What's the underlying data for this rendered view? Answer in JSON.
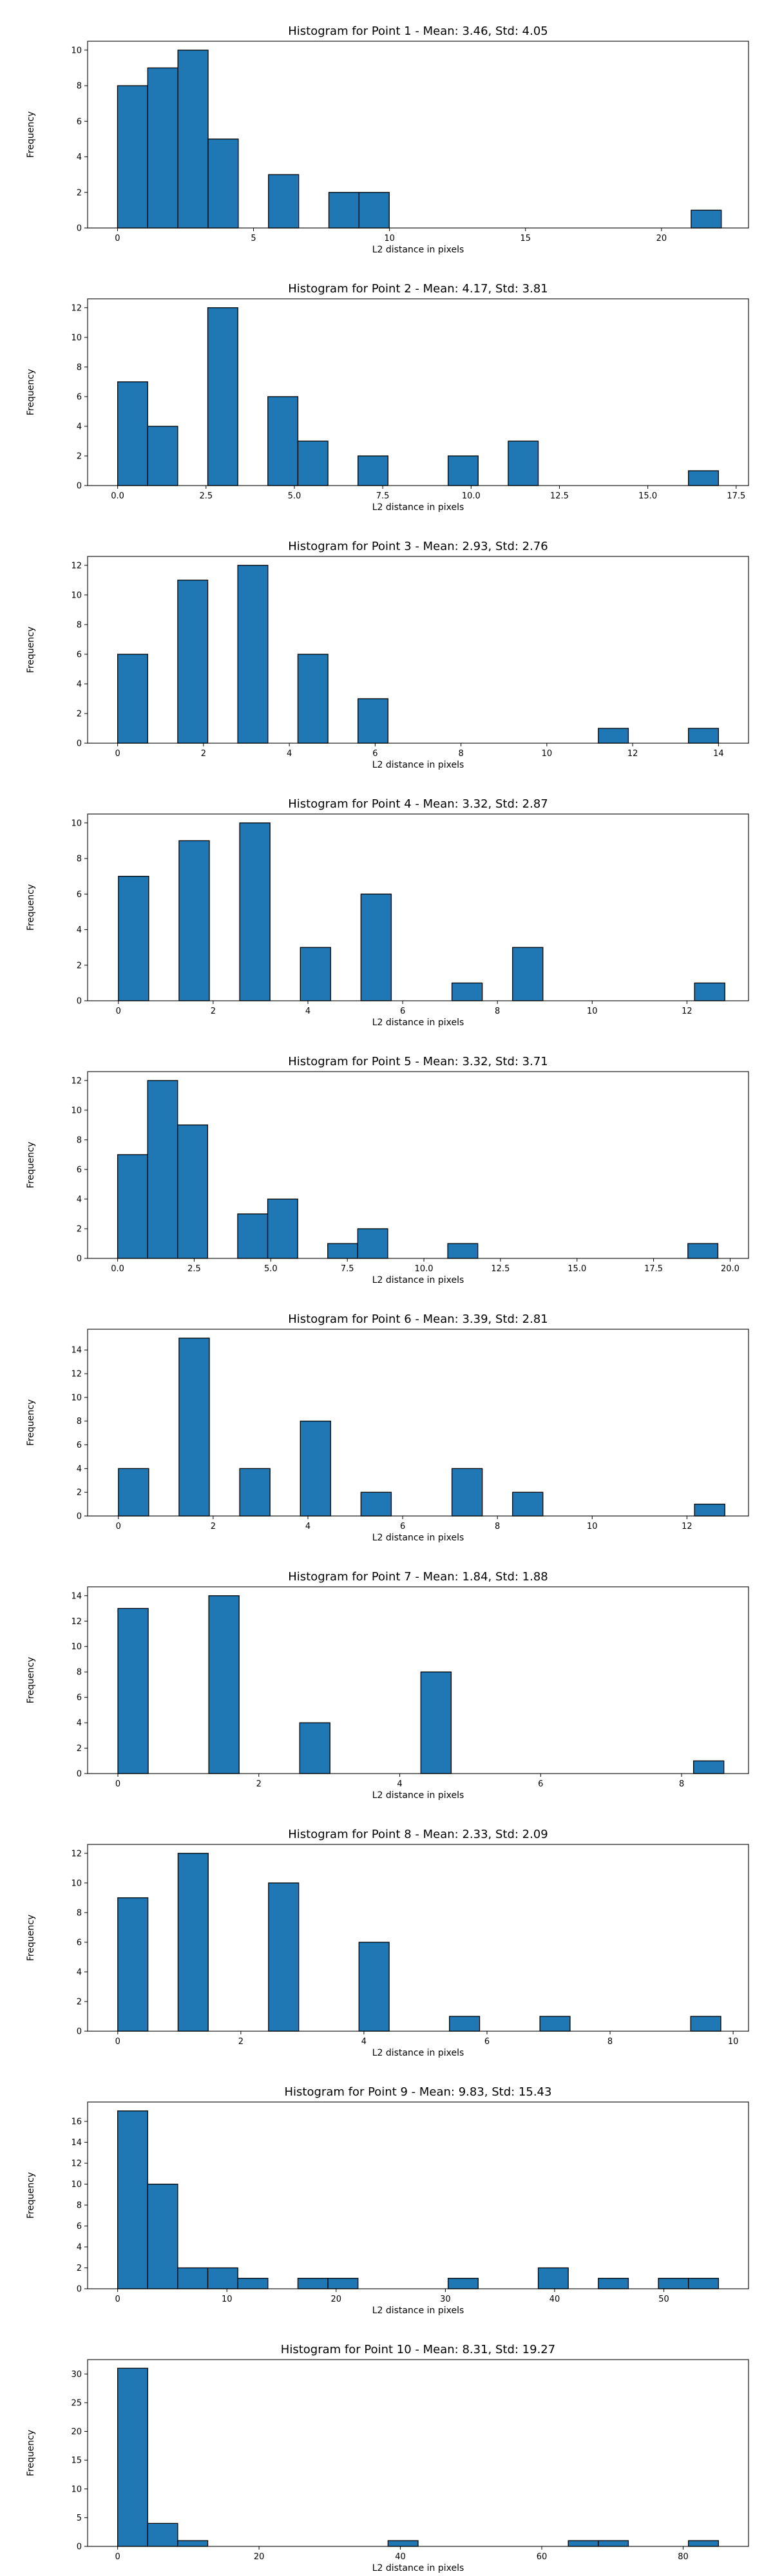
{
  "chart_data": [
    {
      "type": "bar",
      "title": "Histogram for Point 1 - Mean: 3.46, Std: 4.05",
      "xlabel": "L2 distance in pixels",
      "ylabel": "Frequency",
      "xlim": [
        -1.1,
        23.2
      ],
      "ylim": [
        0,
        10.5
      ],
      "xticks": [
        0,
        5,
        10,
        15,
        20
      ],
      "xtick_labels": [
        "0",
        "5",
        "10",
        "15",
        "20"
      ],
      "yticks": [
        0,
        2,
        4,
        6,
        8,
        10
      ],
      "ytick_labels": [
        "0",
        "2",
        "4",
        "6",
        "8",
        "10"
      ],
      "bin_width": 1.11,
      "bins": [
        {
          "x": 0.0,
          "count": 8
        },
        {
          "x": 1.11,
          "count": 9
        },
        {
          "x": 2.22,
          "count": 10
        },
        {
          "x": 3.33,
          "count": 5
        },
        {
          "x": 5.55,
          "count": 3
        },
        {
          "x": 7.77,
          "count": 2
        },
        {
          "x": 8.88,
          "count": 2
        },
        {
          "x": 21.09,
          "count": 1
        }
      ],
      "grid": false
    },
    {
      "type": "bar",
      "title": "Histogram for Point 2 - Mean: 4.17, Std: 3.81",
      "xlabel": "L2 distance in pixels",
      "ylabel": "Frequency",
      "xlim": [
        -0.85,
        17.85
      ],
      "ylim": [
        0,
        12.6
      ],
      "xticks": [
        0,
        2.5,
        5,
        7.5,
        10,
        12.5,
        15,
        17.5
      ],
      "xtick_labels": [
        "0.0",
        "2.5",
        "5.0",
        "7.5",
        "10.0",
        "12.5",
        "15.0",
        "17.5"
      ],
      "yticks": [
        0,
        2,
        4,
        6,
        8,
        10,
        12
      ],
      "ytick_labels": [
        "0",
        "2",
        "4",
        "6",
        "8",
        "10",
        "12"
      ],
      "bin_width": 0.85,
      "bins": [
        {
          "x": 0.0,
          "count": 7
        },
        {
          "x": 0.85,
          "count": 4
        },
        {
          "x": 2.55,
          "count": 12
        },
        {
          "x": 4.25,
          "count": 6
        },
        {
          "x": 5.1,
          "count": 3
        },
        {
          "x": 6.8,
          "count": 2
        },
        {
          "x": 9.35,
          "count": 2
        },
        {
          "x": 11.05,
          "count": 3
        },
        {
          "x": 16.15,
          "count": 1
        }
      ],
      "grid": false
    },
    {
      "type": "bar",
      "title": "Histogram for Point 3 - Mean: 2.93, Std: 2.76",
      "xlabel": "L2 distance in pixels",
      "ylabel": "Frequency",
      "xlim": [
        -0.7,
        14.7
      ],
      "ylim": [
        0,
        12.6
      ],
      "xticks": [
        0,
        2,
        4,
        6,
        8,
        10,
        12,
        14
      ],
      "xtick_labels": [
        "0",
        "2",
        "4",
        "6",
        "8",
        "10",
        "12",
        "14"
      ],
      "yticks": [
        0,
        2,
        4,
        6,
        8,
        10,
        12
      ],
      "ytick_labels": [
        "0",
        "2",
        "4",
        "6",
        "8",
        "10",
        "12"
      ],
      "bin_width": 0.7,
      "bins": [
        {
          "x": 0.0,
          "count": 6
        },
        {
          "x": 1.4,
          "count": 11
        },
        {
          "x": 2.8,
          "count": 12
        },
        {
          "x": 4.2,
          "count": 6
        },
        {
          "x": 5.6,
          "count": 3
        },
        {
          "x": 11.2,
          "count": 1
        },
        {
          "x": 13.3,
          "count": 1
        }
      ],
      "grid": false
    },
    {
      "type": "bar",
      "title": "Histogram for Point 4 - Mean: 3.32, Std: 2.87",
      "xlabel": "L2 distance in pixels",
      "ylabel": "Frequency",
      "xlim": [
        -0.65,
        13.3
      ],
      "ylim": [
        0,
        10.5
      ],
      "xticks": [
        0,
        2,
        4,
        6,
        8,
        10,
        12
      ],
      "xtick_labels": [
        "0",
        "2",
        "4",
        "6",
        "8",
        "10",
        "12"
      ],
      "yticks": [
        0,
        2,
        4,
        6,
        8,
        10
      ],
      "ytick_labels": [
        "0",
        "2",
        "4",
        "6",
        "8",
        "10"
      ],
      "bin_width": 0.64,
      "bins": [
        {
          "x": 0.0,
          "count": 7
        },
        {
          "x": 1.28,
          "count": 9
        },
        {
          "x": 2.56,
          "count": 10
        },
        {
          "x": 3.84,
          "count": 3
        },
        {
          "x": 5.12,
          "count": 6
        },
        {
          "x": 7.04,
          "count": 1
        },
        {
          "x": 8.32,
          "count": 3
        },
        {
          "x": 12.16,
          "count": 1
        }
      ],
      "grid": false
    },
    {
      "type": "bar",
      "title": "Histogram for Point 5 - Mean: 3.32, Std: 3.71",
      "xlabel": "L2 distance in pixels",
      "ylabel": "Frequency",
      "xlim": [
        -0.98,
        20.6
      ],
      "ylim": [
        0,
        12.6
      ],
      "xticks": [
        0,
        2.5,
        5,
        7.5,
        10,
        12.5,
        15,
        17.5,
        20
      ],
      "xtick_labels": [
        "0.0",
        "2.5",
        "5.0",
        "7.5",
        "10.0",
        "12.5",
        "15.0",
        "17.5",
        "20.0"
      ],
      "yticks": [
        0,
        2,
        4,
        6,
        8,
        10,
        12
      ],
      "ytick_labels": [
        "0",
        "2",
        "4",
        "6",
        "8",
        "10",
        "12"
      ],
      "bin_width": 0.98,
      "bins": [
        {
          "x": 0.0,
          "count": 7
        },
        {
          "x": 0.98,
          "count": 12
        },
        {
          "x": 1.96,
          "count": 9
        },
        {
          "x": 3.92,
          "count": 3
        },
        {
          "x": 4.9,
          "count": 4
        },
        {
          "x": 6.86,
          "count": 1
        },
        {
          "x": 7.84,
          "count": 2
        },
        {
          "x": 10.78,
          "count": 1
        },
        {
          "x": 18.62,
          "count": 1
        }
      ],
      "grid": false
    },
    {
      "type": "bar",
      "title": "Histogram for Point 6 - Mean: 3.39, Std: 2.81",
      "xlabel": "L2 distance in pixels",
      "ylabel": "Frequency",
      "xlim": [
        -0.65,
        13.3
      ],
      "ylim": [
        0,
        15.75
      ],
      "xticks": [
        0,
        2,
        4,
        6,
        8,
        10,
        12
      ],
      "xtick_labels": [
        "0",
        "2",
        "4",
        "6",
        "8",
        "10",
        "12"
      ],
      "yticks": [
        0,
        2,
        4,
        6,
        8,
        10,
        12,
        14
      ],
      "ytick_labels": [
        "0",
        "2",
        "4",
        "6",
        "8",
        "10",
        "12",
        "14"
      ],
      "bin_width": 0.64,
      "bins": [
        {
          "x": 0.0,
          "count": 4
        },
        {
          "x": 1.28,
          "count": 15
        },
        {
          "x": 2.56,
          "count": 4
        },
        {
          "x": 3.84,
          "count": 8
        },
        {
          "x": 5.12,
          "count": 2
        },
        {
          "x": 7.04,
          "count": 4
        },
        {
          "x": 8.32,
          "count": 2
        },
        {
          "x": 12.16,
          "count": 1
        }
      ],
      "grid": false
    },
    {
      "type": "bar",
      "title": "Histogram for Point 7 - Mean: 1.84, Std: 1.88",
      "xlabel": "L2 distance in pixels",
      "ylabel": "Frequency",
      "xlim": [
        -0.43,
        8.95
      ],
      "ylim": [
        0,
        14.7
      ],
      "xticks": [
        0,
        2,
        4,
        6,
        8
      ],
      "xtick_labels": [
        "0",
        "2",
        "4",
        "6",
        "8"
      ],
      "yticks": [
        0,
        2,
        4,
        6,
        8,
        10,
        12,
        14
      ],
      "ytick_labels": [
        "0",
        "2",
        "4",
        "6",
        "8",
        "10",
        "12",
        "14"
      ],
      "bin_width": 0.43,
      "bins": [
        {
          "x": 0.0,
          "count": 13
        },
        {
          "x": 1.29,
          "count": 14
        },
        {
          "x": 2.58,
          "count": 4
        },
        {
          "x": 4.3,
          "count": 8
        },
        {
          "x": 8.17,
          "count": 1
        }
      ],
      "grid": false
    },
    {
      "type": "bar",
      "title": "Histogram for Point 8 - Mean: 2.33, Std: 2.09",
      "xlabel": "L2 distance in pixels",
      "ylabel": "Frequency",
      "xlim": [
        -0.49,
        10.25
      ],
      "ylim": [
        0,
        12.6
      ],
      "xticks": [
        0,
        2,
        4,
        6,
        8,
        10
      ],
      "xtick_labels": [
        "0",
        "2",
        "4",
        "6",
        "8",
        "10"
      ],
      "yticks": [
        0,
        2,
        4,
        6,
        8,
        10,
        12
      ],
      "ytick_labels": [
        "0",
        "2",
        "4",
        "6",
        "8",
        "10",
        "12"
      ],
      "bin_width": 0.49,
      "bins": [
        {
          "x": 0.0,
          "count": 9
        },
        {
          "x": 0.98,
          "count": 12
        },
        {
          "x": 2.45,
          "count": 10
        },
        {
          "x": 3.92,
          "count": 6
        },
        {
          "x": 5.39,
          "count": 1
        },
        {
          "x": 6.86,
          "count": 1
        },
        {
          "x": 9.31,
          "count": 1
        }
      ],
      "grid": false
    },
    {
      "type": "bar",
      "title": "Histogram for Point 9 - Mean: 9.83, Std: 15.43",
      "xlabel": "L2 distance in pixels",
      "ylabel": "Frequency",
      "xlim": [
        -2.75,
        57.75
      ],
      "ylim": [
        0,
        17.85
      ],
      "xticks": [
        0,
        10,
        20,
        30,
        40,
        50
      ],
      "xtick_labels": [
        "0",
        "10",
        "20",
        "30",
        "40",
        "50"
      ],
      "yticks": [
        0,
        2,
        4,
        6,
        8,
        10,
        12,
        14,
        16
      ],
      "ytick_labels": [
        "0",
        "2",
        "4",
        "6",
        "8",
        "10",
        "12",
        "14",
        "16"
      ],
      "bin_width": 2.75,
      "bins": [
        {
          "x": 0.0,
          "count": 17
        },
        {
          "x": 2.75,
          "count": 10
        },
        {
          "x": 5.5,
          "count": 2
        },
        {
          "x": 8.25,
          "count": 2
        },
        {
          "x": 11.0,
          "count": 1
        },
        {
          "x": 16.5,
          "count": 1
        },
        {
          "x": 19.25,
          "count": 1
        },
        {
          "x": 30.25,
          "count": 1
        },
        {
          "x": 38.5,
          "count": 2
        },
        {
          "x": 44.0,
          "count": 1
        },
        {
          "x": 49.5,
          "count": 1
        },
        {
          "x": 52.25,
          "count": 1
        }
      ],
      "grid": false
    },
    {
      "type": "bar",
      "title": "Histogram for Point 10 - Mean: 8.31, Std: 19.27",
      "xlabel": "L2 distance in pixels",
      "ylabel": "Frequency",
      "xlim": [
        -4.25,
        89.25
      ],
      "ylim": [
        0,
        32.5
      ],
      "xticks": [
        0,
        20,
        40,
        60,
        80
      ],
      "xtick_labels": [
        "0",
        "20",
        "40",
        "60",
        "80"
      ],
      "yticks": [
        0,
        5,
        10,
        15,
        20,
        25,
        30
      ],
      "ytick_labels": [
        "0",
        "5",
        "10",
        "15",
        "20",
        "25",
        "30"
      ],
      "bin_width": 4.25,
      "bins": [
        {
          "x": 0.0,
          "count": 31
        },
        {
          "x": 4.25,
          "count": 4
        },
        {
          "x": 8.5,
          "count": 1
        },
        {
          "x": 38.25,
          "count": 1
        },
        {
          "x": 63.75,
          "count": 1
        },
        {
          "x": 68.0,
          "count": 1
        },
        {
          "x": 80.75,
          "count": 1
        }
      ],
      "grid": false
    }
  ],
  "colors": {
    "bar_fill": "#1f77b4",
    "bar_edge": "#000000",
    "axis": "#000000",
    "background": "#ffffff"
  }
}
